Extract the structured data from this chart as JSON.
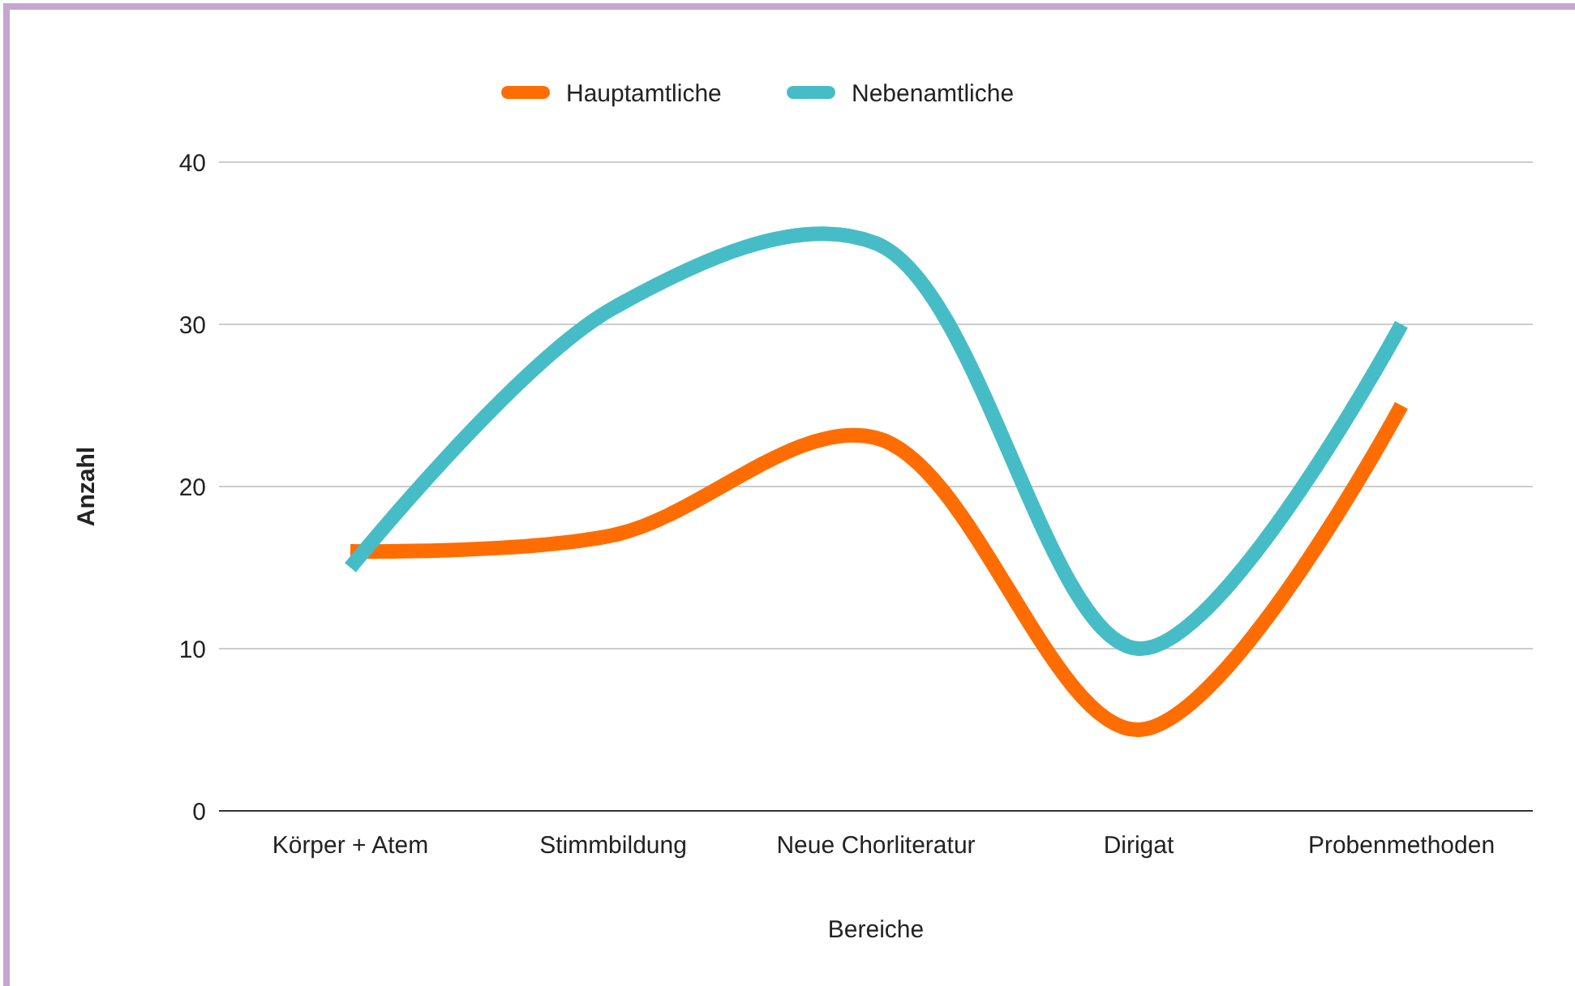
{
  "chart_data": {
    "type": "line",
    "xlabel": "Bereiche",
    "ylabel": "Anzahl",
    "categories": [
      "Körper + Atem",
      "Stimmbildung",
      "Neue Chorliteratur",
      "Dirigat",
      "Probenmethoden"
    ],
    "series": [
      {
        "name": "Hauptamtliche",
        "color": "#ff6d01",
        "values": [
          16,
          17,
          23,
          5,
          25
        ]
      },
      {
        "name": "Nebenamtliche",
        "color": "#46bdc6",
        "values": [
          15,
          31,
          35,
          10,
          30
        ]
      }
    ],
    "ylim": [
      0,
      40
    ],
    "yticks": [
      0,
      10,
      20,
      30,
      40
    ],
    "grid": "y",
    "legend": "top",
    "marker": "none",
    "line_style": "solid"
  }
}
